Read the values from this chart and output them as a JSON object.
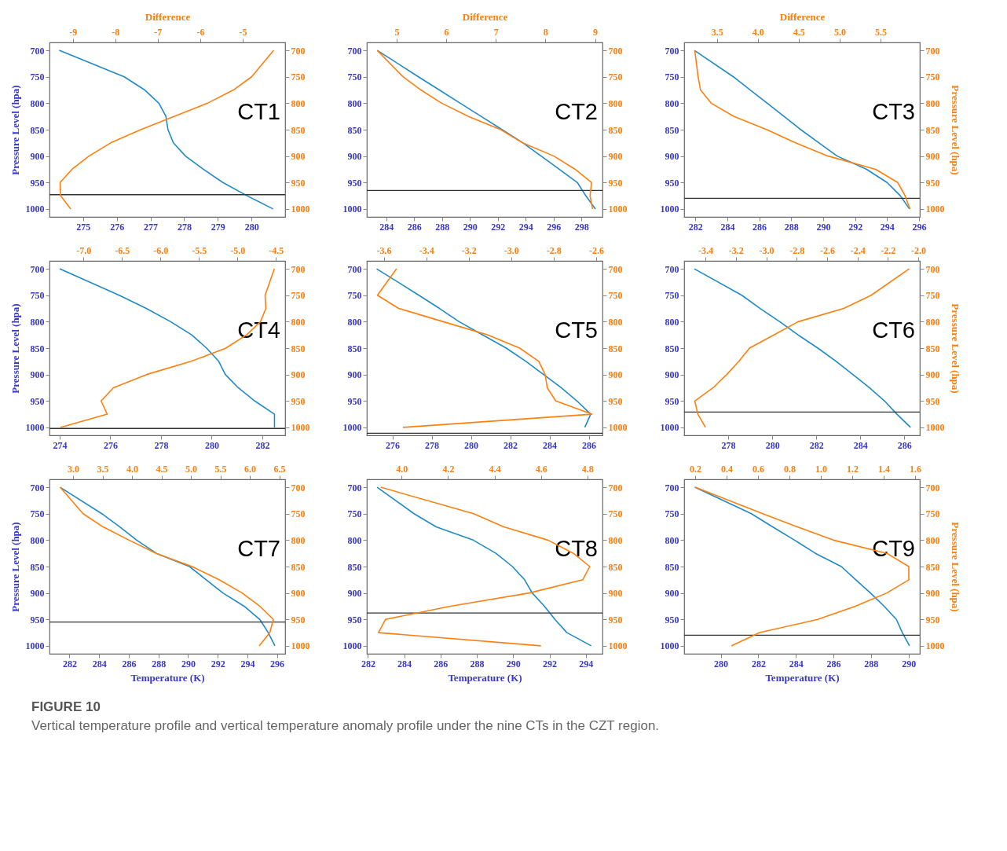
{
  "chart_data": [
    {
      "type": "line",
      "xlim": [
        274.0,
        281.0
      ],
      "xticks": [
        275,
        276,
        277,
        278,
        279,
        280
      ],
      "x2lim": [
        -9.55,
        -4.0
      ],
      "x2ticks": [
        -9,
        -8,
        -7,
        -6,
        -5
      ],
      "x2label": "Difference",
      "ylim": [
        1015,
        685
      ],
      "yticks": [
        700,
        750,
        800,
        850,
        900,
        950,
        1000
      ],
      "y2lim": [
        1015,
        685
      ],
      "y2ticks": [
        700,
        750,
        800,
        850,
        900,
        950,
        1000
      ],
      "ylabel": "Pressure Level (hpa)",
      "annotations": [
        "CT1"
      ],
      "ref_lines": [
        {
          "axis": "y",
          "value": 973,
          "color": "#333333"
        }
      ],
      "series": [
        {
          "color": "#1f8ac6",
          "x": [
            274.29,
            276.22,
            276.83,
            277.25,
            277.46,
            277.52,
            277.68,
            278.04,
            278.57,
            279.15,
            279.87,
            280.64
          ],
          "values": [
            700,
            750,
            775,
            800,
            825,
            850,
            875,
            900,
            925,
            950,
            975,
            1000
          ]
        },
        {
          "color": "#ff7f0e",
          "axis": "x2",
          "x": [
            -4.27,
            -4.79,
            -5.22,
            -5.83,
            -6.62,
            -7.4,
            -8.11,
            -8.62,
            -9.02,
            -9.3,
            -9.29,
            -9.05
          ],
          "values": [
            700,
            750,
            775,
            800,
            825,
            850,
            875,
            900,
            925,
            950,
            975,
            1000
          ]
        }
      ]
    },
    {
      "type": "line",
      "xlim": [
        282.6,
        299.5
      ],
      "xticks": [
        284,
        286,
        288,
        290,
        292,
        294,
        296,
        298
      ],
      "x2lim": [
        4.4,
        9.15
      ],
      "x2ticks": [
        5,
        6,
        7,
        8,
        9
      ],
      "x2label": "Difference",
      "ylim": [
        1015,
        685
      ],
      "yticks": [
        700,
        750,
        800,
        850,
        900,
        950,
        1000
      ],
      "y2lim": [
        1015,
        685
      ],
      "y2ticks": [
        700,
        750,
        800,
        850,
        900,
        950,
        1000
      ],
      "annotations": [
        "CT2"
      ],
      "ref_lines": [
        {
          "axis": "y",
          "value": 965,
          "color": "#333333"
        }
      ],
      "series": [
        {
          "color": "#1f8ac6",
          "x": [
            283.35,
            286.3,
            287.8,
            289.3,
            290.8,
            292.3,
            293.8,
            295.1,
            296.4,
            297.7,
            298.3,
            299.0
          ],
          "values": [
            700,
            750,
            775,
            800,
            825,
            850,
            875,
            900,
            925,
            950,
            975,
            1000
          ]
        },
        {
          "color": "#ff7f0e",
          "axis": "x2",
          "x": [
            4.61,
            5.13,
            5.49,
            5.91,
            6.45,
            7.1,
            7.54,
            8.17,
            8.6,
            8.93,
            8.9,
            8.95
          ],
          "values": [
            700,
            750,
            775,
            800,
            825,
            850,
            875,
            900,
            925,
            950,
            975,
            1000
          ]
        }
      ]
    },
    {
      "type": "line",
      "xlim": [
        281.3,
        296.05
      ],
      "xticks": [
        282,
        284,
        286,
        288,
        290,
        292,
        294,
        296
      ],
      "x2lim": [
        3.1,
        5.98
      ],
      "x2ticks": [
        3.5,
        {
          "value": 4,
          "label": "4.0"
        },
        4.5,
        {
          "value": 5,
          "label": "5.0"
        },
        5.5
      ],
      "x2label": "Difference",
      "ylim": [
        1015,
        685
      ],
      "yticks": [
        700,
        750,
        800,
        850,
        900,
        950,
        1000
      ],
      "y2lim": [
        1015,
        685
      ],
      "y2ticks": [
        700,
        750,
        800,
        850,
        900,
        950,
        1000
      ],
      "y2label": "Pressure Level (hpa)",
      "annotations": [
        "CT3"
      ],
      "ref_lines": [
        {
          "axis": "y",
          "value": 980,
          "color": "#333333"
        }
      ],
      "series": [
        {
          "color": "#1f8ac6",
          "x": [
            281.94,
            284.38,
            285.44,
            286.5,
            287.55,
            288.6,
            289.74,
            290.88,
            292.72,
            294.0,
            294.83,
            295.4
          ],
          "values": [
            700,
            750,
            775,
            800,
            825,
            850,
            875,
            900,
            925,
            950,
            975,
            1000
          ]
        },
        {
          "color": "#ff7f0e",
          "axis": "x2",
          "x": [
            3.23,
            3.27,
            3.3,
            3.43,
            3.71,
            4.11,
            4.46,
            4.86,
            5.44,
            5.71,
            5.8,
            5.86
          ],
          "values": [
            700,
            750,
            775,
            800,
            825,
            850,
            875,
            900,
            925,
            950,
            975,
            1000
          ]
        }
      ]
    },
    {
      "type": "line",
      "xlim": [
        273.6,
        282.9
      ],
      "xticks": [
        274,
        276,
        278,
        280,
        282
      ],
      "x2lim": [
        -7.44,
        -4.38
      ],
      "x2ticks": [
        {
          "value": -7,
          "label": "-7.0"
        },
        -6.5,
        {
          "value": -6,
          "label": "-6.0"
        },
        -5.5,
        {
          "value": -5,
          "label": "-5.0"
        },
        -4.5
      ],
      "ylim": [
        1015,
        685
      ],
      "yticks": [
        700,
        750,
        800,
        850,
        900,
        950,
        1000
      ],
      "y2lim": [
        1015,
        685
      ],
      "y2ticks": [
        700,
        750,
        800,
        850,
        900,
        950,
        1000
      ],
      "ylabel": "Pressure Level (hpa)",
      "annotations": [
        "CT4"
      ],
      "ref_lines": [
        {
          "axis": "y",
          "value": 1002,
          "color": "#333333"
        }
      ],
      "series": [
        {
          "color": "#1f8ac6",
          "x": [
            274.0,
            276.35,
            277.42,
            278.38,
            279.21,
            279.8,
            280.28,
            280.54,
            281.05,
            281.7,
            282.48,
            282.48
          ],
          "values": [
            700,
            750,
            775,
            800,
            825,
            850,
            875,
            900,
            925,
            950,
            975,
            1000
          ]
        },
        {
          "color": "#ff7f0e",
          "axis": "x2",
          "x": [
            -4.52,
            -4.64,
            -4.63,
            -4.7,
            -4.88,
            -5.15,
            -5.6,
            -6.18,
            -6.61,
            -6.77,
            -6.69,
            -7.3
          ],
          "values": [
            700,
            750,
            775,
            800,
            825,
            850,
            875,
            900,
            925,
            950,
            975,
            1000
          ]
        }
      ]
    },
    {
      "type": "line",
      "xlim": [
        274.7,
        286.7
      ],
      "xticks": [
        276,
        278,
        280,
        282,
        284,
        286
      ],
      "x2lim": [
        -3.68,
        -2.57
      ],
      "x2ticks": [
        -3.6,
        -3.4,
        -3.2,
        {
          "value": -3,
          "label": "-3.0"
        },
        -2.8,
        -2.6
      ],
      "ylim": [
        1015,
        685
      ],
      "yticks": [
        700,
        750,
        800,
        850,
        900,
        950,
        1000
      ],
      "y2lim": [
        1015,
        685
      ],
      "y2ticks": [
        700,
        750,
        800,
        850,
        900,
        950,
        1000
      ],
      "annotations": [
        "CT5"
      ],
      "ref_lines": [
        {
          "axis": "y",
          "value": 1011,
          "color": "#333333"
        }
      ],
      "series": [
        {
          "color": "#1f8ac6",
          "x": [
            275.2,
            277.35,
            278.4,
            279.4,
            280.6,
            281.8,
            282.8,
            283.7,
            284.6,
            285.4,
            286.1,
            285.8
          ],
          "values": [
            700,
            750,
            775,
            800,
            825,
            850,
            875,
            900,
            925,
            950,
            975,
            1000
          ]
        },
        {
          "color": "#ff7f0e",
          "axis": "x2",
          "x": [
            -3.54,
            -3.63,
            -3.53,
            -3.32,
            -3.11,
            -2.96,
            -2.87,
            -2.84,
            -2.83,
            -2.79,
            -2.62,
            -3.51
          ],
          "values": [
            700,
            750,
            775,
            800,
            825,
            850,
            875,
            900,
            925,
            950,
            975,
            1000
          ]
        }
      ]
    },
    {
      "type": "line",
      "xlim": [
        276.0,
        286.7
      ],
      "xticks": [
        278,
        280,
        282,
        284,
        286
      ],
      "x2lim": [
        -3.54,
        -1.99
      ],
      "x2ticks": [
        -3.4,
        -3.2,
        {
          "value": -3,
          "label": "-3.0"
        },
        -2.8,
        -2.6,
        -2.4,
        -2.2,
        {
          "value": -2,
          "label": "-2.0"
        }
      ],
      "ylim": [
        1015,
        685
      ],
      "yticks": [
        700,
        750,
        800,
        850,
        900,
        950,
        1000
      ],
      "y2lim": [
        1015,
        685
      ],
      "y2ticks": [
        700,
        750,
        800,
        850,
        900,
        950,
        1000
      ],
      "y2label": "Pressure Level (hpa)",
      "annotations": [
        "CT6"
      ],
      "ref_lines": [
        {
          "axis": "y",
          "value": 971,
          "color": "#333333"
        }
      ],
      "series": [
        {
          "color": "#1f8ac6",
          "x": [
            276.46,
            278.62,
            279.45,
            280.34,
            281.17,
            282.07,
            282.9,
            283.66,
            284.41,
            285.1,
            285.66,
            286.28
          ],
          "values": [
            700,
            750,
            775,
            800,
            825,
            850,
            875,
            900,
            925,
            950,
            975,
            1000
          ]
        },
        {
          "color": "#ff7f0e",
          "axis": "x2",
          "x": [
            -2.06,
            -2.31,
            -2.49,
            -2.79,
            -2.95,
            -3.11,
            -3.18,
            -3.26,
            -3.35,
            -3.47,
            -3.45,
            -3.4
          ],
          "values": [
            700,
            750,
            775,
            800,
            825,
            850,
            875,
            900,
            925,
            950,
            975,
            1000
          ]
        }
      ]
    },
    {
      "type": "line",
      "xlim": [
        280.65,
        296.55
      ],
      "xticks": [
        282,
        284,
        286,
        288,
        290,
        292,
        294,
        296
      ],
      "x2lim": [
        2.6,
        6.6
      ],
      "x2ticks": [
        {
          "value": 3,
          "label": "3.0"
        },
        3.5,
        {
          "value": 4,
          "label": "4.0"
        },
        4.5,
        {
          "value": 5,
          "label": "5.0"
        },
        5.5,
        {
          "value": 6,
          "label": "6.0"
        },
        6.5
      ],
      "xlabel": "Temperature (K)",
      "ylim": [
        1015,
        685
      ],
      "yticks": [
        700,
        750,
        800,
        850,
        900,
        950,
        1000
      ],
      "y2lim": [
        1015,
        685
      ],
      "y2ticks": [
        700,
        750,
        800,
        850,
        900,
        950,
        1000
      ],
      "ylabel": "Pressure Level (hpa)",
      "annotations": [
        "CT7"
      ],
      "ref_lines": [
        {
          "axis": "y",
          "value": 955,
          "color": "#333333"
        }
      ],
      "series": [
        {
          "color": "#1f8ac6",
          "x": [
            281.37,
            284.18,
            285.4,
            286.53,
            287.86,
            290.1,
            291.22,
            292.35,
            293.78,
            294.84,
            295.41,
            295.86
          ],
          "values": [
            700,
            750,
            775,
            800,
            825,
            850,
            875,
            900,
            925,
            950,
            975,
            1000
          ]
        },
        {
          "color": "#ff7f0e",
          "axis": "x2",
          "x": [
            2.78,
            3.17,
            3.51,
            3.95,
            4.41,
            5.02,
            5.48,
            5.87,
            6.17,
            6.4,
            6.34,
            6.16
          ],
          "values": [
            700,
            750,
            775,
            800,
            825,
            850,
            875,
            900,
            925,
            950,
            975,
            1000
          ]
        }
      ]
    },
    {
      "type": "line",
      "xlim": [
        281.94,
        294.92
      ],
      "xticks": [
        282,
        284,
        286,
        288,
        290,
        292,
        294
      ],
      "x2lim": [
        3.85,
        4.865
      ],
      "x2ticks": [
        {
          "value": 4,
          "label": "4.0"
        },
        4.2,
        4.4,
        4.6,
        4.8
      ],
      "xlabel": "Temperature (K)",
      "ylim": [
        1015,
        685
      ],
      "yticks": [
        700,
        750,
        800,
        850,
        900,
        950,
        1000
      ],
      "y2lim": [
        1015,
        685
      ],
      "y2ticks": [
        700,
        750,
        800,
        850,
        900,
        950,
        1000
      ],
      "annotations": [
        "CT8"
      ],
      "ref_lines": [
        {
          "axis": "y",
          "value": 938,
          "color": "#333333"
        }
      ],
      "series": [
        {
          "color": "#1f8ac6",
          "x": [
            282.51,
            284.54,
            285.76,
            287.8,
            289.05,
            289.96,
            290.63,
            291.05,
            291.72,
            292.3,
            292.96,
            294.3
          ],
          "values": [
            700,
            750,
            775,
            800,
            825,
            850,
            875,
            900,
            925,
            950,
            975,
            1000
          ]
        },
        {
          "color": "#ff7f0e",
          "axis": "x2",
          "x": [
            3.91,
            4.31,
            4.44,
            4.63,
            4.74,
            4.81,
            4.78,
            4.55,
            4.21,
            3.93,
            3.9,
            4.6
          ],
          "values": [
            700,
            750,
            775,
            800,
            825,
            850,
            875,
            900,
            925,
            950,
            975,
            1000
          ]
        }
      ]
    },
    {
      "type": "line",
      "xlim": [
        278.05,
        290.6
      ],
      "xticks": [
        280,
        282,
        284,
        286,
        288,
        290
      ],
      "x2lim": [
        0.13,
        1.63
      ],
      "x2ticks": [
        0.2,
        0.4,
        0.6,
        0.8,
        {
          "value": 1,
          "label": "1.0"
        },
        1.2,
        1.4,
        1.6
      ],
      "xlabel": "Temperature (K)",
      "ylim": [
        1015,
        685
      ],
      "yticks": [
        700,
        750,
        800,
        850,
        900,
        950,
        1000
      ],
      "y2lim": [
        1015,
        685
      ],
      "y2ticks": [
        700,
        750,
        800,
        850,
        900,
        950,
        1000
      ],
      "y2label": "Pressure Level (hpa)",
      "annotations": [
        "CT9",
        "FIGURE 10",
        "Vertical temperature profile and vertical temperature anomaly profile under the nine CTs in the CZT region."
      ],
      "ref_lines": [
        {
          "axis": "y",
          "value": 980,
          "color": "#333333"
        }
      ],
      "series": [
        {
          "color": "#1f8ac6",
          "x": [
            278.62,
            281.63,
            282.76,
            283.93,
            285.04,
            286.42,
            287.19,
            287.97,
            288.7,
            289.35,
            289.67,
            290.05
          ],
          "values": [
            700,
            750,
            775,
            800,
            825,
            850,
            875,
            900,
            925,
            950,
            975,
            1000
          ]
        },
        {
          "color": "#ff7f0e",
          "axis": "x2",
          "x": [
            0.2,
            0.63,
            0.85,
            1.08,
            1.42,
            1.56,
            1.56,
            1.42,
            1.22,
            0.98,
            0.61,
            0.43
          ],
          "values": [
            700,
            750,
            775,
            800,
            825,
            850,
            875,
            900,
            925,
            950,
            975,
            1000
          ]
        }
      ]
    }
  ]
}
